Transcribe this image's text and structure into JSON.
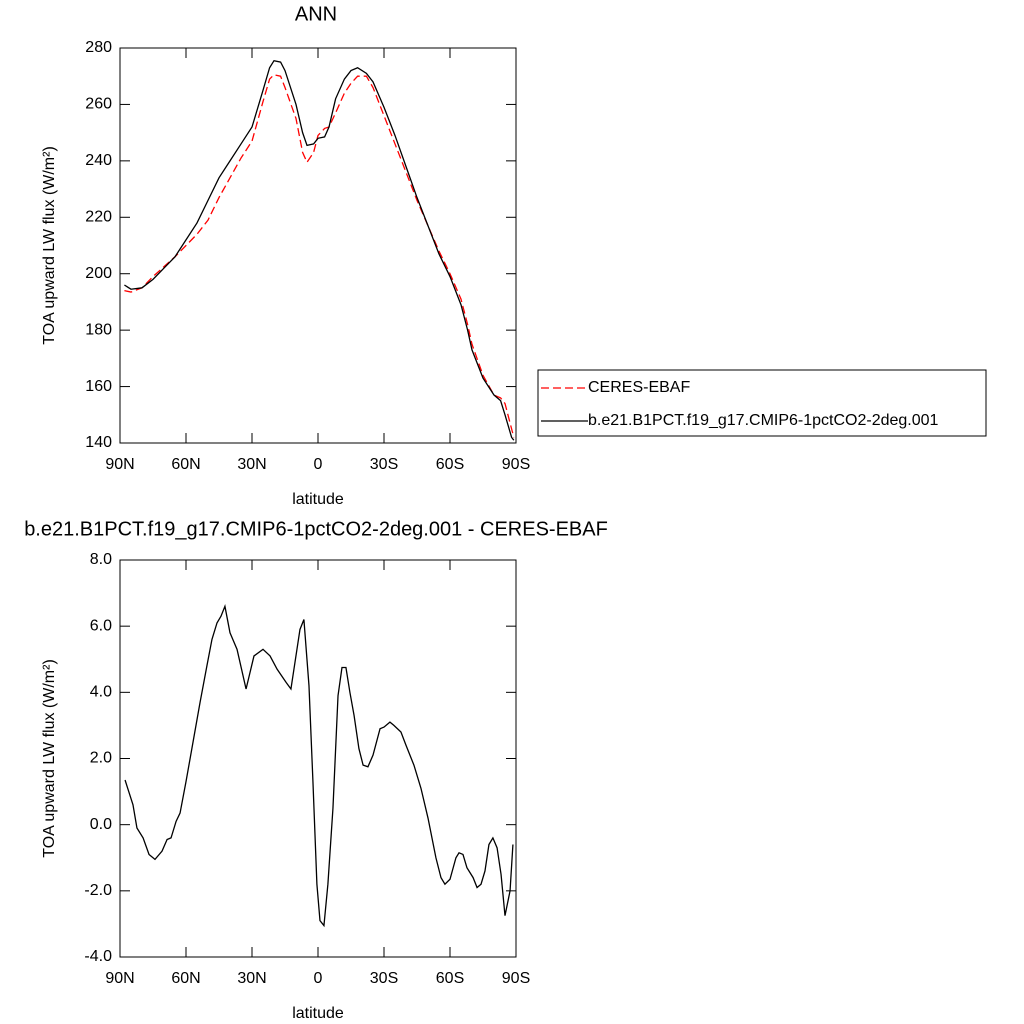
{
  "chart_data": [
    {
      "type": "line",
      "title": "ANN",
      "x_label": "latitude",
      "y_label": "TOA upward LW flux (W/m²)",
      "xlim": [
        90,
        -90
      ],
      "xticks": [
        {
          "value": 90,
          "label": "90N"
        },
        {
          "value": 60,
          "label": "60N"
        },
        {
          "value": 30,
          "label": "30N"
        },
        0,
        {
          "value": -30,
          "label": "30S"
        },
        {
          "value": -60,
          "label": "60S"
        },
        {
          "value": -90,
          "label": "90S"
        }
      ],
      "ylim": [
        140,
        280
      ],
      "yticks": [
        140,
        160,
        180,
        200,
        220,
        240,
        260,
        280
      ],
      "legend": "right",
      "x": [
        88,
        85,
        80,
        75,
        70,
        65,
        60,
        55,
        50,
        45,
        40,
        35,
        30,
        25,
        22,
        20,
        17,
        15,
        10,
        7,
        5,
        2,
        0,
        -3,
        -5,
        -8,
        -12,
        -15,
        -18,
        -22,
        -25,
        -30,
        -35,
        -40,
        -45,
        -50,
        -55,
        -60,
        -65,
        -68,
        -70,
        -75,
        -80,
        -83,
        -85,
        -88,
        -89
      ],
      "series": [
        {
          "name": "CERES-EBAF",
          "color": "#ff0000",
          "line_style": "dashed",
          "values": [
            194,
            193.5,
            195,
            199,
            202.5,
            206,
            210,
            214,
            219,
            227,
            234,
            241,
            247,
            261,
            269,
            270.5,
            270,
            266,
            255,
            243,
            239.5,
            243,
            249,
            251.5,
            252,
            257,
            264,
            267.5,
            270,
            270,
            266,
            256,
            246,
            236,
            226,
            217,
            208,
            200,
            191,
            182,
            175,
            164,
            157,
            156,
            154,
            145,
            142
          ]
        },
        {
          "name": "b.e21.B1PCT.f19_g17.CMIP6-1pctCO2-2deg.001",
          "color": "#000000",
          "line_style": "solid",
          "values": [
            196,
            194.5,
            195,
            198,
            202,
            206,
            212,
            218,
            226,
            234,
            240,
            246,
            252,
            265,
            273,
            275.5,
            275,
            272,
            260,
            250,
            245.5,
            246,
            248,
            248.5,
            252,
            262,
            269,
            272,
            273,
            271,
            268,
            259,
            249,
            238,
            227,
            217,
            207,
            199,
            189,
            180,
            173,
            163,
            157,
            155,
            150,
            142,
            141
          ]
        }
      ]
    },
    {
      "type": "line",
      "title": "b.e21.B1PCT.f19_g17.CMIP6-1pctCO2-2deg.001 - CERES-EBAF",
      "x_label": "latitude",
      "y_label": "TOA upward LW flux (W/m²)",
      "xlim": [
        90,
        -90
      ],
      "xticks": [
        {
          "value": 90,
          "label": "90N"
        },
        {
          "value": 60,
          "label": "60N"
        },
        {
          "value": 30,
          "label": "30N"
        },
        0,
        {
          "value": -30,
          "label": "30S"
        },
        {
          "value": -60,
          "label": "60S"
        },
        {
          "value": -90,
          "label": "90S"
        }
      ],
      "ylim": [
        -4,
        8
      ],
      "yticks": [
        {
          "value": -4,
          "label": "-4.0"
        },
        {
          "value": -2,
          "label": "-2.0"
        },
        {
          "value": 0,
          "label": "0.0"
        },
        {
          "value": 2,
          "label": "2.0"
        },
        {
          "value": 4,
          "label": "4.0"
        },
        {
          "value": 6,
          "label": "6.0"
        },
        {
          "value": 8,
          "label": "8.0"
        }
      ],
      "x": [
        87.7,
        84.1,
        82.3,
        79.5,
        76.8,
        74.1,
        70.9,
        68.6,
        66.8,
        64.5,
        62.7,
        60,
        56.8,
        53.6,
        50.5,
        48.2,
        45.9,
        44.1,
        42.3,
        40,
        36.8,
        32.7,
        29.1,
        25,
        21.8,
        18.6,
        14.5,
        12.3,
        8.2,
        6.4,
        4.1,
        2.3,
        0.5,
        -0.9,
        -2.7,
        -4.5,
        -6.8,
        -9.1,
        -10.9,
        -12.7,
        -14.5,
        -16.4,
        -18.6,
        -20.5,
        -22.7,
        -25,
        -28.2,
        -30,
        -32.7,
        -34.5,
        -37.7,
        -40,
        -43.6,
        -46.8,
        -50,
        -53.6,
        -55.9,
        -57.7,
        -60,
        -62.7,
        -64.1,
        -65.9,
        -67.7,
        -70.5,
        -72.3,
        -74.1,
        -75.9,
        -77.7,
        -79.5,
        -81.4,
        -83.2,
        -85,
        -87.3,
        -88.6
      ],
      "series": [
        {
          "color": "#000000",
          "line_style": "solid",
          "values": [
            1.35,
            0.6,
            -0.1,
            -0.4,
            -0.9,
            -1.05,
            -0.8,
            -0.45,
            -0.4,
            0.1,
            0.35,
            1.3,
            2.5,
            3.7,
            4.8,
            5.6,
            6.1,
            6.3,
            6.6,
            5.8,
            5.3,
            4.1,
            5.1,
            5.3,
            5.1,
            4.7,
            4.3,
            4.1,
            5.9,
            6.2,
            4.2,
            1.3,
            -1.8,
            -2.9,
            -3.05,
            -1.8,
            0.5,
            3.9,
            4.75,
            4.75,
            4.0,
            3.3,
            2.3,
            1.8,
            1.75,
            2.1,
            2.9,
            2.95,
            3.1,
            3.0,
            2.8,
            2.4,
            1.8,
            1.1,
            0.2,
            -1.0,
            -1.6,
            -1.8,
            -1.65,
            -1.0,
            -0.85,
            -0.9,
            -1.3,
            -1.6,
            -1.9,
            -1.8,
            -1.4,
            -0.6,
            -0.4,
            -0.7,
            -1.5,
            -2.75,
            -2.0,
            -0.6
          ]
        }
      ]
    }
  ]
}
